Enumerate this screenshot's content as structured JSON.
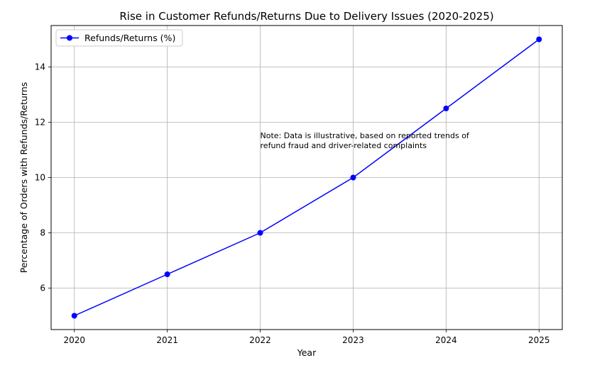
{
  "chart_data": {
    "type": "line",
    "title": "Rise in Customer Refunds/Returns Due to Delivery Issues (2020-2025)",
    "xlabel": "Year",
    "ylabel": "Percentage of Orders with Refunds/Returns",
    "x": [
      "2020",
      "2021",
      "2022",
      "2023",
      "2024",
      "2025"
    ],
    "series": [
      {
        "name": "Refunds/Returns (%)",
        "values": [
          5,
          6.5,
          8,
          10,
          12.5,
          15
        ],
        "color": "#0000ff",
        "marker": "circle"
      }
    ],
    "yticks": [
      "6",
      "8",
      "10",
      "12",
      "14"
    ],
    "ylim": [
      4.5,
      15.5
    ],
    "grid": true,
    "legend": "top-left",
    "annotation": {
      "lines": [
        "Note: Data is illustrative, based on reported trends of",
        "refund fraud and driver-related complaints"
      ],
      "x": "2022",
      "y": 11.4
    }
  }
}
